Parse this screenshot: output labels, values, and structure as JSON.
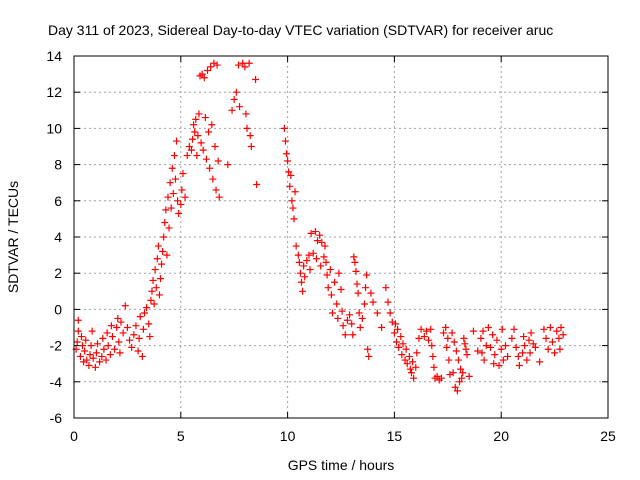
{
  "chart_data": {
    "type": "scatter",
    "title": "Day 311 of 2023, Sidereal Day-to-day VTEC variation (SDTVAR) for receiver aruc",
    "xlabel": "GPS time / hours",
    "ylabel": "SDTVAR / TECUs",
    "xlim": [
      0,
      25
    ],
    "ylim": [
      -6,
      14
    ],
    "x_ticks": [
      0,
      5,
      10,
      15,
      20,
      25
    ],
    "x_tick_labels": [
      "0",
      "5",
      "10",
      "15",
      "20",
      "25"
    ],
    "y_ticks": [
      -6,
      -4,
      -2,
      0,
      2,
      4,
      6,
      8,
      10,
      12,
      14
    ],
    "y_tick_labels": [
      "-6",
      "-4",
      "-2",
      "0",
      "2",
      "4",
      "6",
      "8",
      "10",
      "12",
      "14"
    ],
    "grid": true,
    "marker": "+",
    "series": [
      {
        "name": "SDTVAR",
        "color": "#ff0000",
        "points": [
          [
            0.1,
            -2.2
          ],
          [
            0.15,
            -1.8
          ],
          [
            0.2,
            -1.2
          ],
          [
            0.2,
            -0.6
          ],
          [
            0.3,
            -2.6
          ],
          [
            0.35,
            -1.5
          ],
          [
            0.4,
            -2.0
          ],
          [
            0.45,
            -2.9
          ],
          [
            0.5,
            -2.3
          ],
          [
            0.55,
            -1.7
          ],
          [
            0.6,
            -2.8
          ],
          [
            0.7,
            -3.1
          ],
          [
            0.75,
            -2.5
          ],
          [
            0.8,
            -2.0
          ],
          [
            0.85,
            -1.2
          ],
          [
            0.9,
            -2.7
          ],
          [
            1.0,
            -3.2
          ],
          [
            1.05,
            -2.4
          ],
          [
            1.1,
            -1.9
          ],
          [
            1.2,
            -2.9
          ],
          [
            1.3,
            -2.6
          ],
          [
            1.35,
            -1.6
          ],
          [
            1.4,
            -2.2
          ],
          [
            1.5,
            -2.8
          ],
          [
            1.55,
            -1.3
          ],
          [
            1.6,
            -2.0
          ],
          [
            1.7,
            -2.5
          ],
          [
            1.75,
            -0.9
          ],
          [
            1.8,
            -1.5
          ],
          [
            1.9,
            -2.2
          ],
          [
            2.0,
            -1.0
          ],
          [
            2.05,
            -0.5
          ],
          [
            2.1,
            -1.8
          ],
          [
            2.15,
            -2.4
          ],
          [
            2.2,
            -0.7
          ],
          [
            2.3,
            -1.3
          ],
          [
            2.4,
            0.2
          ],
          [
            2.5,
            -1.0
          ],
          [
            2.6,
            -1.7
          ],
          [
            2.7,
            -2.1
          ],
          [
            2.8,
            -1.4
          ],
          [
            2.9,
            -0.9
          ],
          [
            3.0,
            -2.3
          ],
          [
            3.05,
            -1.6
          ],
          [
            3.1,
            -0.4
          ],
          [
            3.2,
            -2.6
          ],
          [
            3.25,
            -1.1
          ],
          [
            3.3,
            -0.2
          ],
          [
            3.4,
            0.1
          ],
          [
            3.5,
            -0.8
          ],
          [
            3.55,
            -1.5
          ],
          [
            3.6,
            0.5
          ],
          [
            3.65,
            1.0
          ],
          [
            3.7,
            1.6
          ],
          [
            3.75,
            0.3
          ],
          [
            3.8,
            2.2
          ],
          [
            3.85,
            1.2
          ],
          [
            3.9,
            2.8
          ],
          [
            3.95,
            3.5
          ],
          [
            4.0,
            0.8
          ],
          [
            4.05,
            1.7
          ],
          [
            4.1,
            2.5
          ],
          [
            4.15,
            3.2
          ],
          [
            4.2,
            4.0
          ],
          [
            4.25,
            4.8
          ],
          [
            4.3,
            5.5
          ],
          [
            4.35,
            3.0
          ],
          [
            4.4,
            6.2
          ],
          [
            4.45,
            4.5
          ],
          [
            4.5,
            7.0
          ],
          [
            4.55,
            5.6
          ],
          [
            4.6,
            7.8
          ],
          [
            4.65,
            6.4
          ],
          [
            4.7,
            8.5
          ],
          [
            4.75,
            7.2
          ],
          [
            4.8,
            9.3
          ],
          [
            4.85,
            6.0
          ],
          [
            4.9,
            5.3
          ],
          [
            5.0,
            5.8
          ],
          [
            5.05,
            6.6
          ],
          [
            5.1,
            7.5
          ],
          [
            5.2,
            6.2
          ],
          [
            5.3,
            8.5
          ],
          [
            5.4,
            9.0
          ],
          [
            5.5,
            8.8
          ],
          [
            5.55,
            9.4
          ],
          [
            5.6,
            10.2
          ],
          [
            5.65,
            9.8
          ],
          [
            5.7,
            10.5
          ],
          [
            5.75,
            8.5
          ],
          [
            5.8,
            9.6
          ],
          [
            5.85,
            10.8
          ],
          [
            5.9,
            12.9
          ],
          [
            5.95,
            9.2
          ],
          [
            6.0,
            13.0
          ],
          [
            6.05,
            8.8
          ],
          [
            6.1,
            12.8
          ],
          [
            6.15,
            10.6
          ],
          [
            6.2,
            8.3
          ],
          [
            6.25,
            13.2
          ],
          [
            6.3,
            9.8
          ],
          [
            6.35,
            7.8
          ],
          [
            6.4,
            13.4
          ],
          [
            6.45,
            10.2
          ],
          [
            6.5,
            7.2
          ],
          [
            6.55,
            13.6
          ],
          [
            6.6,
            9.0
          ],
          [
            6.65,
            6.6
          ],
          [
            6.7,
            13.5
          ],
          [
            6.75,
            8.2
          ],
          [
            6.8,
            6.2
          ],
          [
            7.2,
            8.0
          ],
          [
            7.4,
            11.0
          ],
          [
            7.5,
            11.6
          ],
          [
            7.6,
            12.0
          ],
          [
            7.7,
            13.5
          ],
          [
            7.75,
            11.2
          ],
          [
            7.9,
            13.6
          ],
          [
            8.0,
            13.4
          ],
          [
            8.05,
            10.8
          ],
          [
            8.1,
            10.0
          ],
          [
            8.2,
            13.6
          ],
          [
            8.25,
            9.6
          ],
          [
            8.3,
            9.0
          ],
          [
            8.5,
            12.7
          ],
          [
            8.55,
            6.9
          ],
          [
            9.85,
            10.0
          ],
          [
            9.9,
            9.3
          ],
          [
            9.95,
            8.6
          ],
          [
            10.0,
            8.2
          ],
          [
            10.05,
            7.6
          ],
          [
            10.1,
            6.8
          ],
          [
            10.15,
            7.4
          ],
          [
            10.2,
            6.0
          ],
          [
            10.25,
            5.6
          ],
          [
            10.3,
            5.0
          ],
          [
            10.35,
            6.5
          ],
          [
            10.4,
            3.5
          ],
          [
            10.5,
            3.0
          ],
          [
            10.55,
            2.6
          ],
          [
            10.6,
            2.0
          ],
          [
            10.65,
            1.5
          ],
          [
            10.7,
            1.0
          ],
          [
            10.75,
            2.4
          ],
          [
            10.8,
            1.8
          ],
          [
            10.9,
            2.7
          ],
          [
            11.0,
            3.0
          ],
          [
            11.05,
            2.2
          ],
          [
            11.1,
            4.2
          ],
          [
            11.2,
            3.1
          ],
          [
            11.3,
            4.3
          ],
          [
            11.35,
            2.8
          ],
          [
            11.4,
            3.8
          ],
          [
            11.5,
            4.1
          ],
          [
            11.55,
            2.4
          ],
          [
            11.6,
            3.7
          ],
          [
            11.7,
            2.9
          ],
          [
            11.75,
            3.5
          ],
          [
            11.8,
            2.6
          ],
          [
            11.85,
            1.9
          ],
          [
            11.9,
            1.2
          ],
          [
            12.0,
            2.2
          ],
          [
            12.05,
            0.8
          ],
          [
            12.1,
            -0.2
          ],
          [
            12.2,
            1.5
          ],
          [
            12.3,
            0.3
          ],
          [
            12.35,
            -0.5
          ],
          [
            12.4,
            2.0
          ],
          [
            12.5,
            1.1
          ],
          [
            12.55,
            -0.1
          ],
          [
            12.6,
            -0.9
          ],
          [
            12.7,
            -1.4
          ],
          [
            12.8,
            -0.6
          ],
          [
            12.9,
            -0.3
          ],
          [
            13.0,
            -0.8
          ],
          [
            13.05,
            -1.4
          ],
          [
            13.1,
            2.9
          ],
          [
            13.15,
            2.6
          ],
          [
            13.2,
            2.1
          ],
          [
            13.25,
            1.4
          ],
          [
            13.3,
            0.9
          ],
          [
            13.35,
            -0.2
          ],
          [
            13.4,
            -1.0
          ],
          [
            13.5,
            -0.5
          ],
          [
            13.6,
            0.3
          ],
          [
            13.65,
            1.2
          ],
          [
            13.7,
            1.9
          ],
          [
            13.75,
            -2.2
          ],
          [
            13.8,
            -2.6
          ],
          [
            13.9,
            0.9
          ],
          [
            14.0,
            0.4
          ],
          [
            14.2,
            -0.2
          ],
          [
            14.4,
            -1.0
          ],
          [
            14.6,
            1.2
          ],
          [
            14.7,
            0.4
          ],
          [
            14.8,
            -0.2
          ],
          [
            14.9,
            -0.7
          ],
          [
            15.0,
            -1.3
          ],
          [
            15.05,
            -0.8
          ],
          [
            15.1,
            -1.8
          ],
          [
            15.15,
            -1.1
          ],
          [
            15.2,
            -2.1
          ],
          [
            15.3,
            -1.5
          ],
          [
            15.35,
            -2.5
          ],
          [
            15.4,
            -1.9
          ],
          [
            15.5,
            -2.8
          ],
          [
            15.55,
            -2.2
          ],
          [
            15.6,
            -3.0
          ],
          [
            15.7,
            -2.6
          ],
          [
            15.75,
            -3.3
          ],
          [
            15.8,
            -3.5
          ],
          [
            15.85,
            -2.9
          ],
          [
            15.9,
            -3.8
          ],
          [
            16.0,
            -3.2
          ],
          [
            16.05,
            -2.4
          ],
          [
            16.15,
            -1.6
          ],
          [
            16.25,
            -1.1
          ],
          [
            16.4,
            -1.5
          ],
          [
            16.5,
            -1.2
          ],
          [
            16.6,
            -1.7
          ],
          [
            16.7,
            -1.1
          ],
          [
            16.75,
            -2.0
          ],
          [
            16.8,
            -2.6
          ],
          [
            16.85,
            -3.2
          ],
          [
            16.9,
            -3.8
          ],
          [
            17.0,
            -3.7
          ],
          [
            17.1,
            -3.9
          ],
          [
            17.2,
            -3.8
          ],
          [
            17.3,
            -1.3
          ],
          [
            17.4,
            -1.0
          ],
          [
            17.45,
            -2.1
          ],
          [
            17.5,
            -1.6
          ],
          [
            17.55,
            -2.8
          ],
          [
            17.6,
            -3.6
          ],
          [
            17.7,
            -1.3
          ],
          [
            17.75,
            -3.5
          ],
          [
            17.8,
            -1.8
          ],
          [
            17.85,
            -4.3
          ],
          [
            17.9,
            -2.3
          ],
          [
            17.95,
            -4.5
          ],
          [
            18.0,
            -2.8
          ],
          [
            18.05,
            -4.0
          ],
          [
            18.1,
            -3.3
          ],
          [
            18.15,
            -3.8
          ],
          [
            18.2,
            -3.5
          ],
          [
            18.25,
            -1.6
          ],
          [
            18.3,
            -1.9
          ],
          [
            18.35,
            -2.2
          ],
          [
            18.4,
            -2.5
          ],
          [
            18.5,
            -3.7
          ],
          [
            18.7,
            -1.2
          ],
          [
            18.9,
            -2.3
          ],
          [
            19.05,
            -1.6
          ],
          [
            19.1,
            -2.4
          ],
          [
            19.15,
            -1.2
          ],
          [
            19.2,
            -2.8
          ],
          [
            19.3,
            -2.0
          ],
          [
            19.4,
            -1.0
          ],
          [
            19.5,
            -2.1
          ],
          [
            19.6,
            -1.4
          ],
          [
            19.65,
            -3.0
          ],
          [
            19.7,
            -2.5
          ],
          [
            19.8,
            -1.7
          ],
          [
            19.9,
            -3.1
          ],
          [
            20.0,
            -2.2
          ],
          [
            20.05,
            -1.1
          ],
          [
            20.1,
            -2.8
          ],
          [
            20.2,
            -2.0
          ],
          [
            20.3,
            -2.6
          ],
          [
            20.5,
            -1.6
          ],
          [
            20.6,
            -1.1
          ],
          [
            20.7,
            -2.1
          ],
          [
            20.8,
            -2.6
          ],
          [
            20.85,
            -3.1
          ],
          [
            21.0,
            -2.4
          ],
          [
            21.05,
            -1.5
          ],
          [
            21.1,
            -2.0
          ],
          [
            21.2,
            -2.8
          ],
          [
            21.3,
            -1.7
          ],
          [
            21.35,
            -2.4
          ],
          [
            21.4,
            -1.3
          ],
          [
            21.5,
            -1.9
          ],
          [
            21.6,
            -2.1
          ],
          [
            21.8,
            -2.9
          ],
          [
            22.0,
            -1.1
          ],
          [
            22.1,
            -1.6
          ],
          [
            22.2,
            -2.2
          ],
          [
            22.3,
            -1.0
          ],
          [
            22.4,
            -1.8
          ],
          [
            22.5,
            -2.4
          ],
          [
            22.6,
            -1.2
          ],
          [
            22.7,
            -1.6
          ],
          [
            22.75,
            -2.2
          ],
          [
            22.8,
            -1.0
          ],
          [
            22.9,
            -1.4
          ]
        ]
      }
    ]
  }
}
